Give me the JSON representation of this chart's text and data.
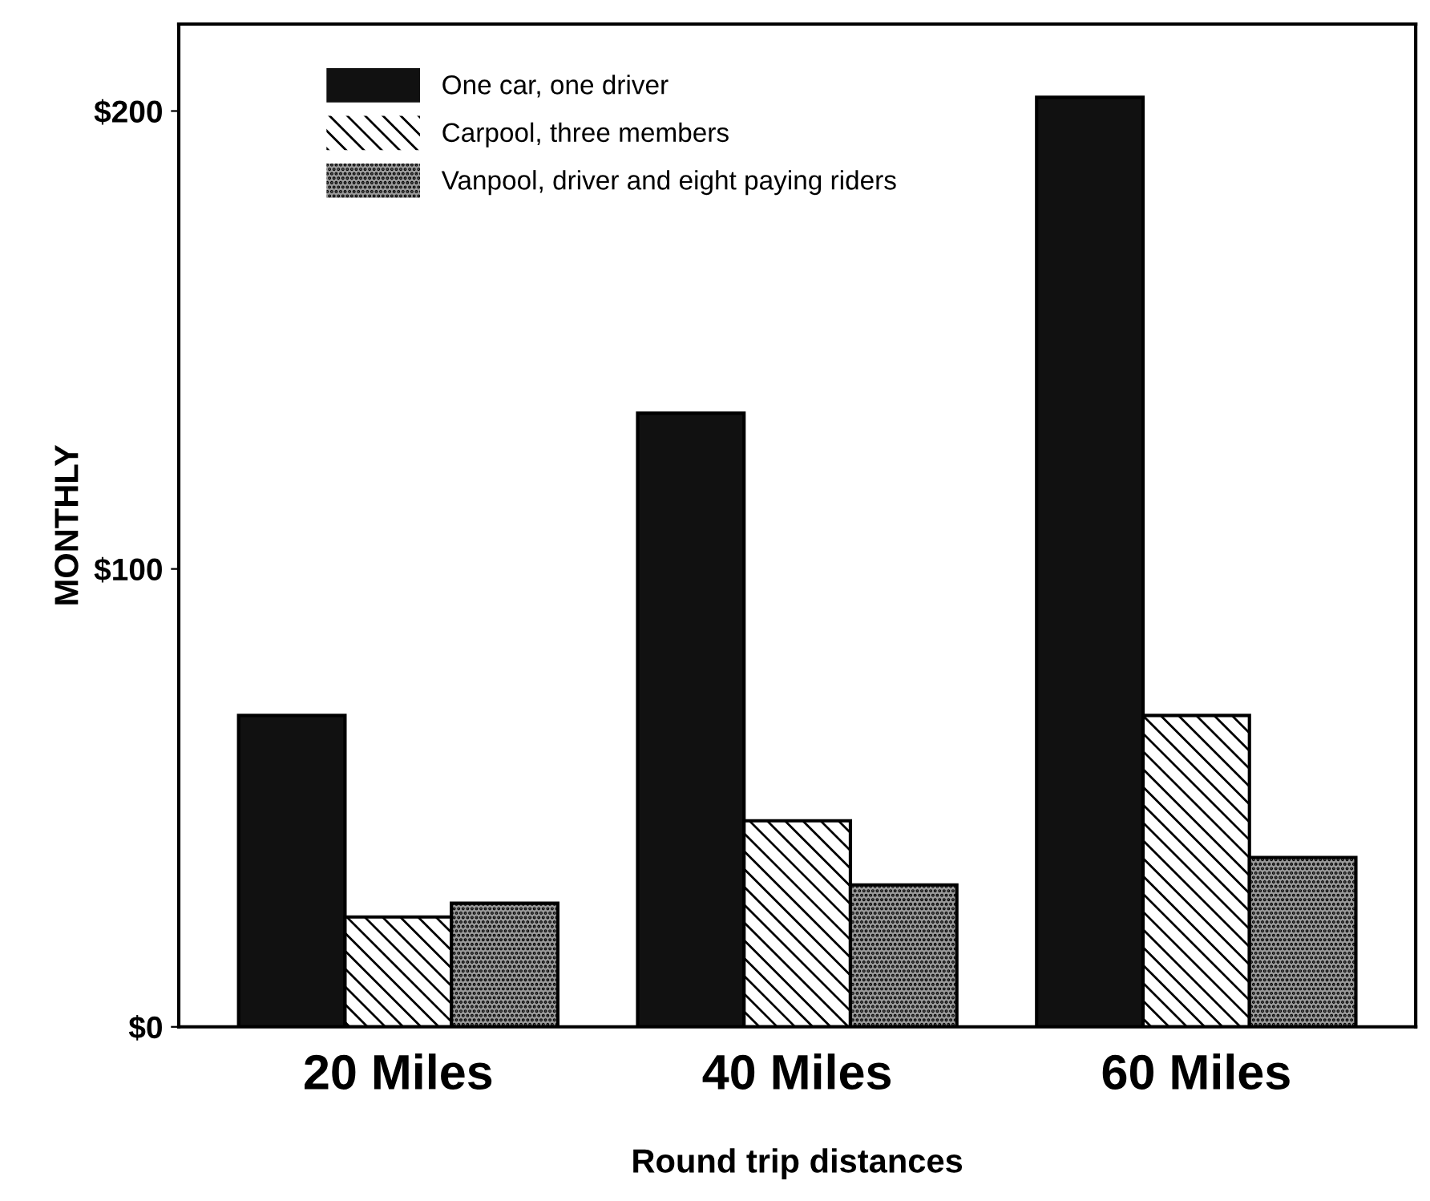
{
  "chart_data": {
    "type": "bar",
    "xlabel": "Round trip distances",
    "ylabel": "MONTHLY",
    "categories": [
      "20 Miles",
      "40 Miles",
      "60 Miles"
    ],
    "series": [
      {
        "name": "One car, one driver",
        "color": "#111111",
        "values": [
          68,
          134,
          203
        ]
      },
      {
        "name": "Carpool, three members",
        "color": "#ffffff",
        "values": [
          24,
          45,
          68
        ]
      },
      {
        "name": "Vanpool, driver and eight paying riders",
        "color": "#9a9a9a",
        "values": [
          27,
          31,
          37
        ]
      }
    ],
    "ylim": [
      0,
      219
    ],
    "yticks": [
      {
        "value": 0,
        "label": "$0"
      },
      {
        "value": 100,
        "label": "$100"
      },
      {
        "value": 200,
        "label": "$200"
      }
    ],
    "grid": false,
    "legend": "top left"
  }
}
